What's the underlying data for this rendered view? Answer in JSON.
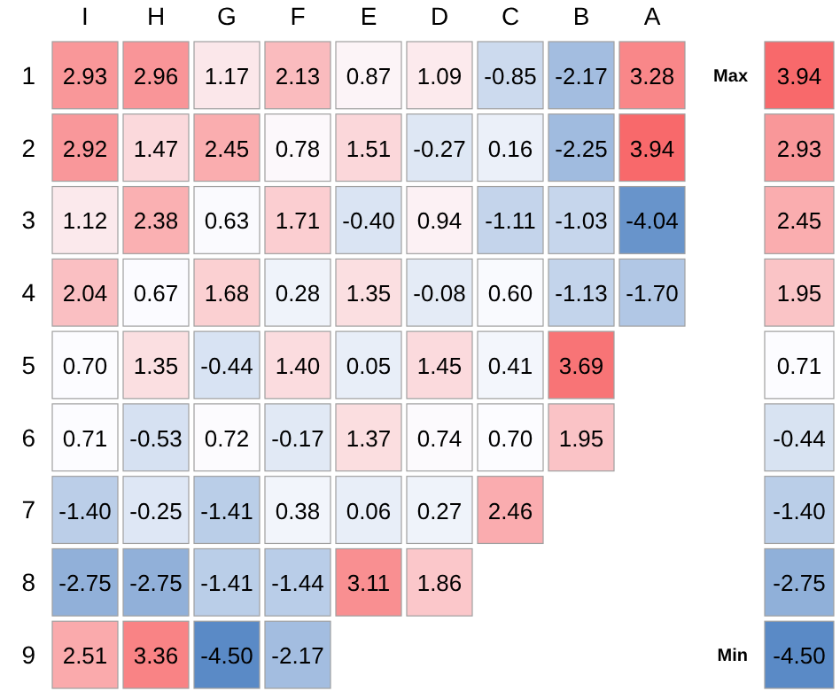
{
  "chart_data": [
    {
      "type": "heatmap",
      "categories": [
        "I",
        "H",
        "G",
        "F",
        "E",
        "D",
        "C",
        "B",
        "A"
      ],
      "y_categories": [
        "1",
        "2",
        "3",
        "4",
        "5",
        "6",
        "7",
        "8",
        "9"
      ],
      "cells": [
        [
          2.93,
          2.96,
          1.17,
          2.13,
          0.87,
          1.09,
          -0.85,
          -2.17,
          3.28
        ],
        [
          2.92,
          1.47,
          2.45,
          0.78,
          1.51,
          -0.27,
          0.16,
          -2.25,
          3.94
        ],
        [
          1.12,
          2.38,
          0.63,
          1.71,
          -0.4,
          0.94,
          -1.11,
          -1.03,
          -4.04
        ],
        [
          2.04,
          0.67,
          1.68,
          0.28,
          1.35,
          -0.08,
          0.6,
          -1.13,
          -1.7
        ],
        [
          0.7,
          1.35,
          -0.44,
          1.4,
          0.05,
          1.45,
          0.41,
          3.69,
          null
        ],
        [
          0.71,
          -0.53,
          0.72,
          -0.17,
          1.37,
          0.74,
          0.7,
          1.95,
          null
        ],
        [
          -1.4,
          -0.25,
          -1.41,
          0.38,
          0.06,
          0.27,
          2.46,
          null,
          null
        ],
        [
          -2.75,
          -2.75,
          -1.41,
          -1.44,
          3.11,
          1.86,
          null,
          null,
          null
        ],
        [
          2.51,
          3.36,
          -4.5,
          -2.17,
          null,
          null,
          null,
          null,
          null
        ]
      ],
      "cell_labels": [
        [
          "2.93",
          "2.96",
          "1.17",
          "2.13",
          "0.87",
          "1.09",
          "-0.85",
          "-2.17",
          "3.28"
        ],
        [
          "2.92",
          "1.47",
          "2.45",
          "0.78",
          "1.51",
          "-0.27",
          "0.16",
          "-2.25",
          "3.94"
        ],
        [
          "1.12",
          "2.38",
          "0.63",
          "1.71",
          "-0.40",
          "0.94",
          "-1.11",
          "-1.03",
          "-4.04"
        ],
        [
          "2.04",
          "0.67",
          "1.68",
          "0.28",
          "1.35",
          "-0.08",
          "0.60",
          "-1.13",
          "-1.70"
        ],
        [
          "0.70",
          "1.35",
          "-0.44",
          "1.40",
          "0.05",
          "1.45",
          "0.41",
          "3.69",
          null
        ],
        [
          "0.71",
          "-0.53",
          "0.72",
          "-0.17",
          "1.37",
          "0.74",
          "0.70",
          "1.95",
          null
        ],
        [
          "-1.40",
          "-0.25",
          "-1.41",
          "0.38",
          "0.06",
          "0.27",
          "2.46",
          null,
          null
        ],
        [
          "-2.75",
          "-2.75",
          "-1.41",
          "-1.44",
          "3.11",
          "1.86",
          null,
          null,
          null
        ],
        [
          "2.51",
          "3.36",
          "-4.50",
          "-2.17",
          null,
          null,
          null,
          null,
          null
        ]
      ]
    },
    {
      "type": "heatmap",
      "categories": [
        null
      ],
      "y_categories": [
        "Max",
        null,
        null,
        null,
        null,
        null,
        null,
        null,
        "Min"
      ],
      "cells": [
        [
          3.94
        ],
        [
          2.93
        ],
        [
          2.45
        ],
        [
          1.95
        ],
        [
          0.71
        ],
        [
          -0.44
        ],
        [
          -1.4
        ],
        [
          -2.75
        ],
        [
          -4.5
        ]
      ],
      "cell_labels": [
        [
          "3.94"
        ],
        [
          "2.93"
        ],
        [
          "2.45"
        ],
        [
          "1.95"
        ],
        [
          "0.71"
        ],
        [
          "-0.44"
        ],
        [
          "-1.40"
        ],
        [
          "-2.75"
        ],
        [
          "-4.50"
        ]
      ]
    }
  ]
}
